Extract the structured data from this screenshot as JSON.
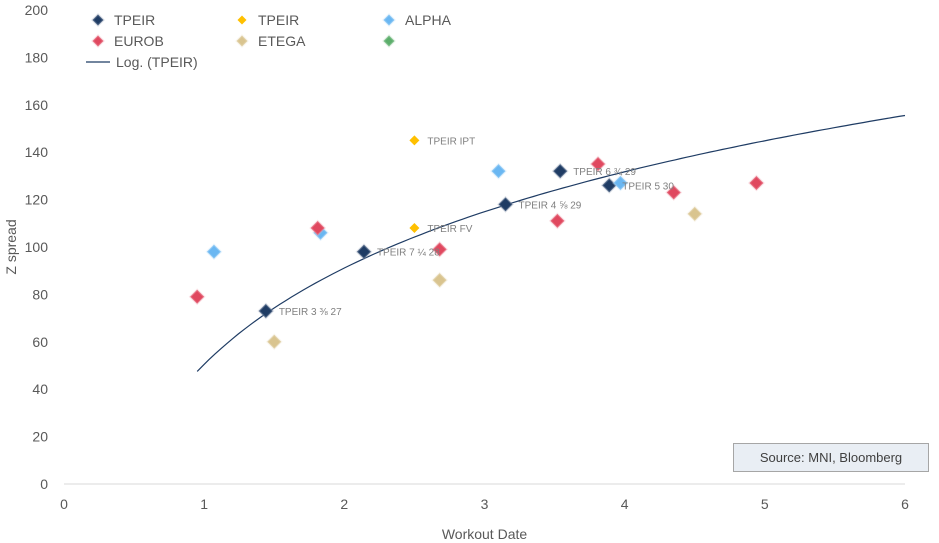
{
  "chart_data": {
    "type": "scatter",
    "xlabel": "Workout Date",
    "ylabel": "Z spread",
    "xlim": [
      0,
      6
    ],
    "ylim": [
      0,
      200
    ],
    "x_ticks": [
      "0",
      "1",
      "2",
      "3",
      "4",
      "5",
      "6"
    ],
    "y_ticks": [
      "0",
      "20",
      "40",
      "60",
      "80",
      "100",
      "120",
      "140",
      "160",
      "180",
      "200"
    ],
    "grid": false,
    "legend_position": "top-left",
    "series": [
      {
        "name": "TPEIR",
        "color": "#1f3c64",
        "points": [
          [
            1.44,
            73
          ],
          [
            2.14,
            98
          ],
          [
            3.15,
            118
          ],
          [
            3.54,
            132
          ],
          [
            3.89,
            126
          ]
        ]
      },
      {
        "name": "TPEIR",
        "color": "#ffc000",
        "points": [
          [
            2.5,
            145
          ],
          [
            2.5,
            108
          ]
        ]
      },
      {
        "name": "ALPHA",
        "color": "#6ab7f2",
        "points": [
          [
            1.07,
            98
          ],
          [
            1.83,
            106
          ],
          [
            3.1,
            132
          ],
          [
            3.97,
            127
          ]
        ]
      },
      {
        "name": "EUROB",
        "color": "#e0485f",
        "points": [
          [
            0.95,
            79
          ],
          [
            1.81,
            108
          ],
          [
            2.68,
            99
          ],
          [
            3.52,
            111
          ],
          [
            3.81,
            135
          ],
          [
            4.35,
            123
          ],
          [
            4.94,
            127
          ]
        ]
      },
      {
        "name": "ETEGA",
        "color": "#d9c48f",
        "points": [
          [
            1.5,
            60
          ],
          [
            2.68,
            86
          ],
          [
            4.5,
            114
          ]
        ]
      },
      {
        "name": "",
        "color": "#5cae6b",
        "points": []
      }
    ],
    "trendline": {
      "name": "Log. (TPEIR)",
      "color": "#1f3c64",
      "a": 50.5,
      "b": 58.6,
      "x_range": [
        0.95,
        6
      ]
    },
    "annotations": [
      {
        "text": "TPEIR IPT",
        "x": 2.5,
        "y": 145
      },
      {
        "text": "TPEIR FV",
        "x": 2.5,
        "y": 108
      },
      {
        "text": "TPEIR 3 ⅜ 27",
        "x": 1.44,
        "y": 73
      },
      {
        "text": "TPEIR 7 ¼ 28",
        "x": 2.14,
        "y": 98
      },
      {
        "text": "TPEIR 4 ⅝ 29",
        "x": 3.15,
        "y": 118
      },
      {
        "text": "TPEIR 6 ¾ 29",
        "x": 3.54,
        "y": 132
      },
      {
        "text": "TPEIR 5 30",
        "x": 3.89,
        "y": 126
      }
    ],
    "source": "Source: MNI, Bloomberg"
  }
}
